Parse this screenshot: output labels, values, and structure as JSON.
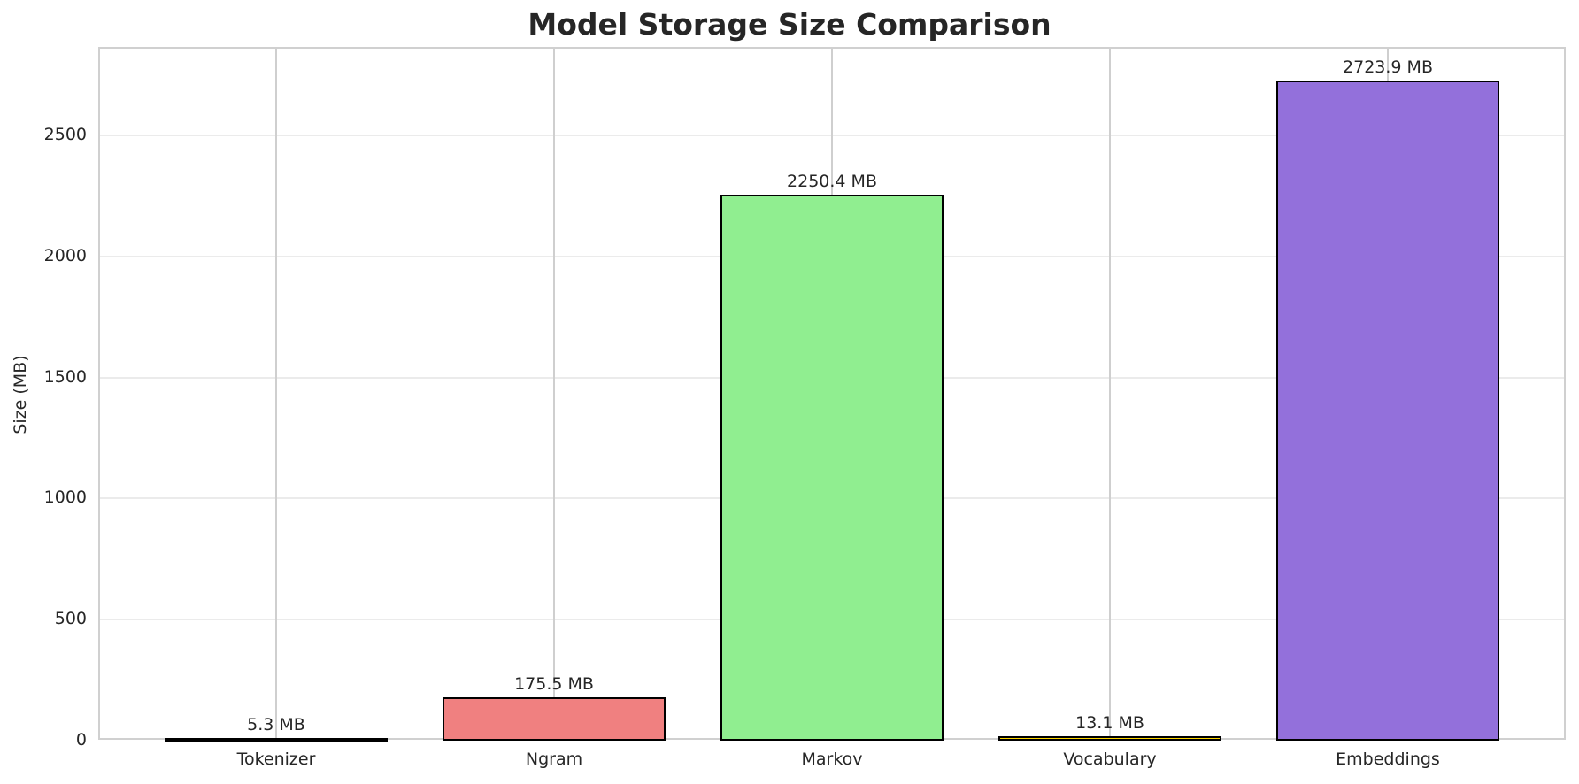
{
  "chart_data": {
    "type": "bar",
    "title": "Model Storage Size Comparison",
    "xlabel": "",
    "ylabel": "Size (MB)",
    "categories": [
      "Tokenizer",
      "Ngram",
      "Markov",
      "Vocabulary",
      "Embeddings"
    ],
    "values": [
      5.3,
      175.5,
      2250.4,
      13.1,
      2723.9
    ],
    "value_labels": [
      "5.3 MB",
      "175.5 MB",
      "2250.4 MB",
      "13.1 MB",
      "2723.9 MB"
    ],
    "colors": [
      "#87ceeb",
      "#f08080",
      "#90ee90",
      "#ffd700",
      "#9370db"
    ],
    "edge_color": "#000000",
    "yticks": [
      0,
      500,
      1000,
      1500,
      2000,
      2500
    ],
    "ylim": [
      0,
      2862
    ],
    "grid": true,
    "legend": null
  }
}
